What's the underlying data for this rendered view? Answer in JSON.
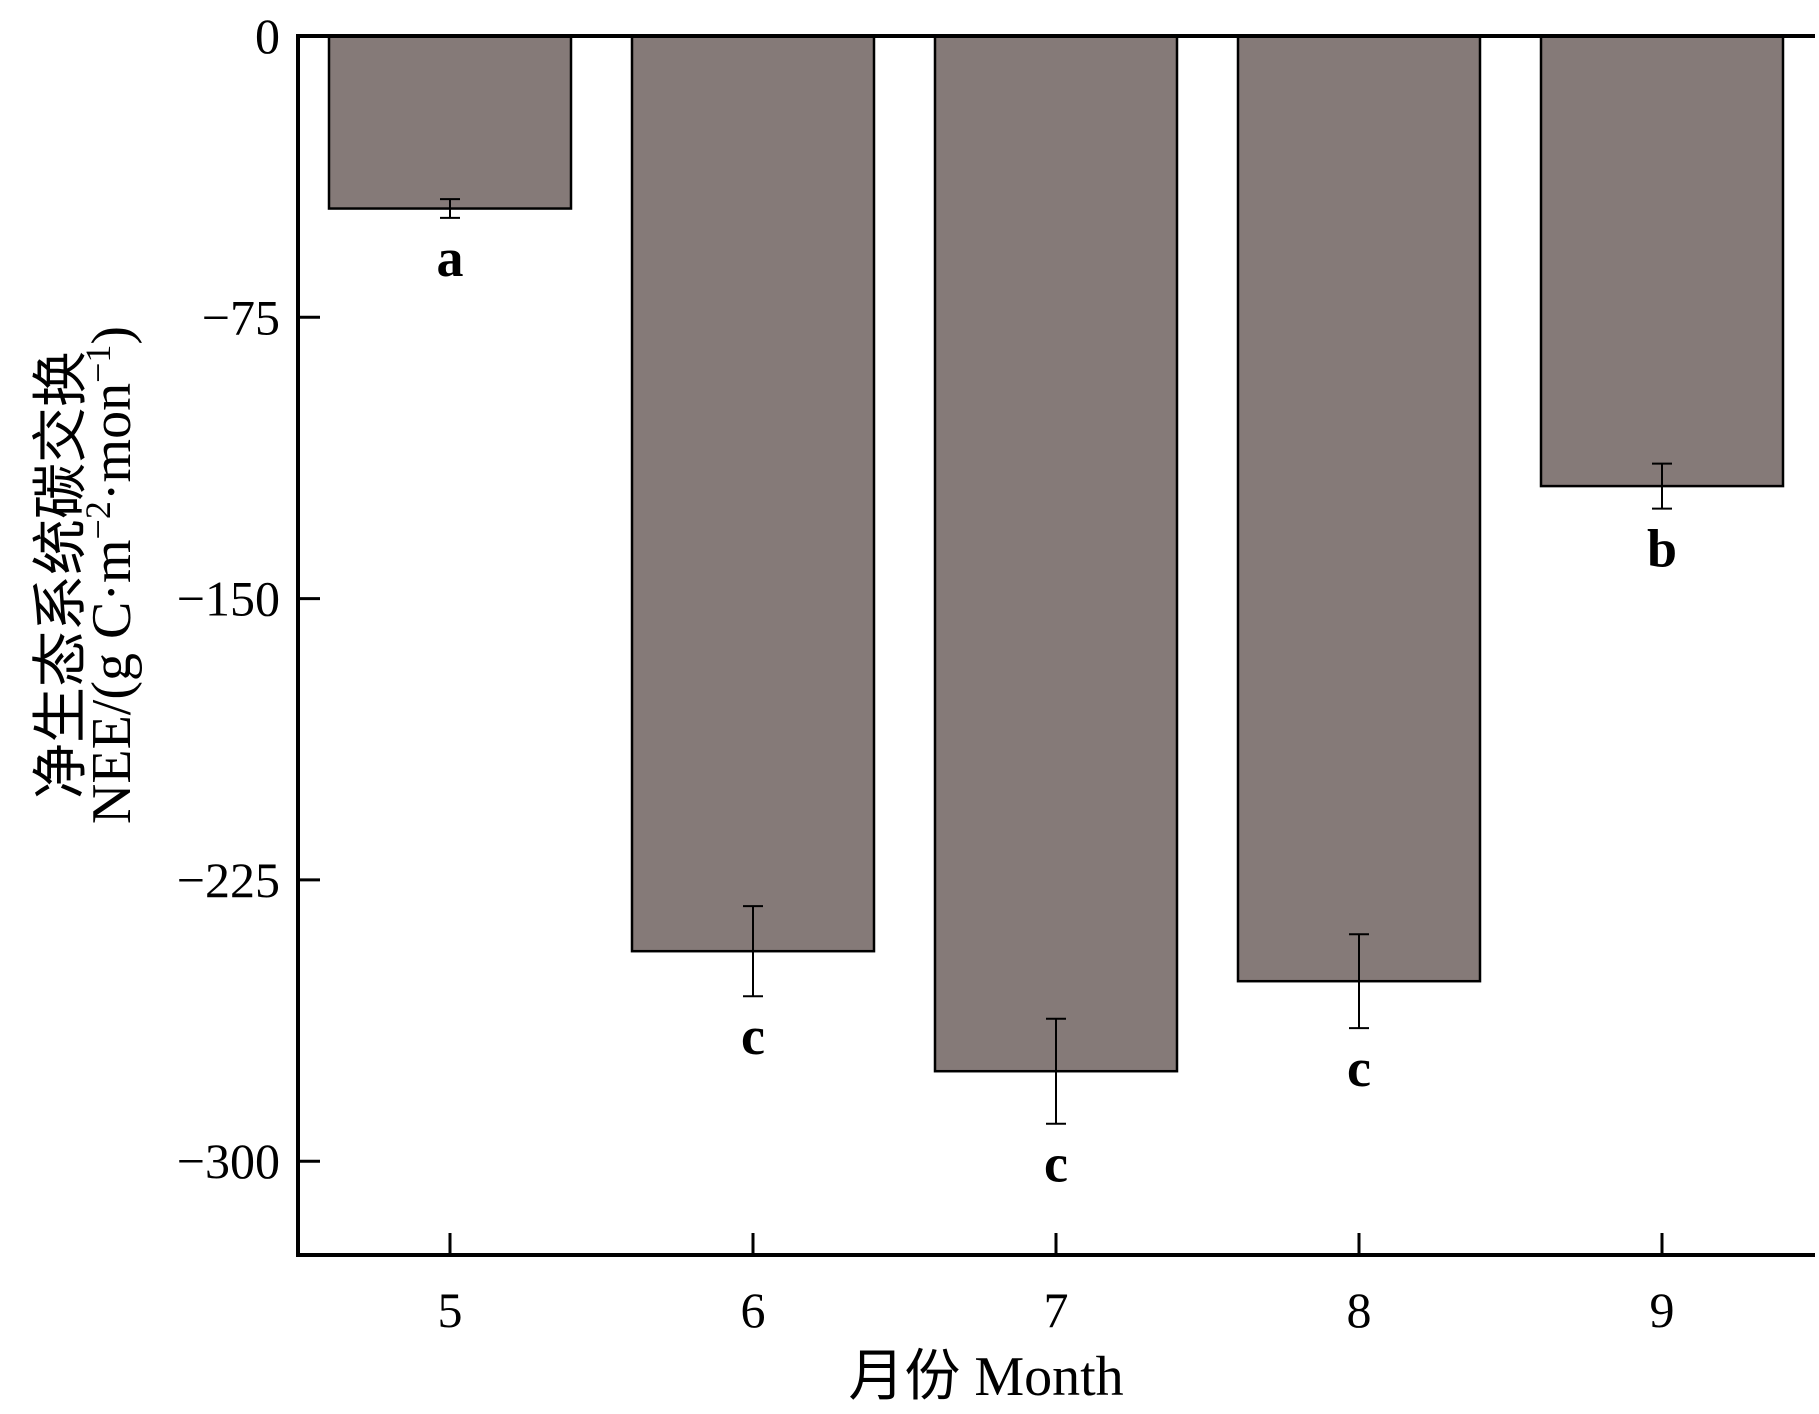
{
  "chart_data": {
    "type": "bar",
    "categories": [
      "5",
      "6",
      "7",
      "8",
      "9"
    ],
    "values": [
      -46,
      -244,
      -276,
      -252,
      -120
    ],
    "errors": [
      2.5,
      12,
      14,
      12.5,
      6
    ],
    "letters": [
      "a",
      "c",
      "c",
      "c",
      "b"
    ],
    "ylim": [
      -325,
      0
    ],
    "yticks": [
      0,
      -75,
      -150,
      -225,
      -300
    ],
    "ytick_labels": [
      "0",
      "−75",
      "−150",
      "−225",
      "−300"
    ],
    "xlabel": "月份 Month",
    "ylabel_cn": "净生态系统碳交换",
    "ylabel_en_prefix": "NEE/(g C·m",
    "ylabel_exp1": "−2",
    "ylabel_mid": "·mon",
    "ylabel_exp2": "−1",
    "ylabel_suffix": ")",
    "bar_color": "#857a78",
    "grid": false
  }
}
